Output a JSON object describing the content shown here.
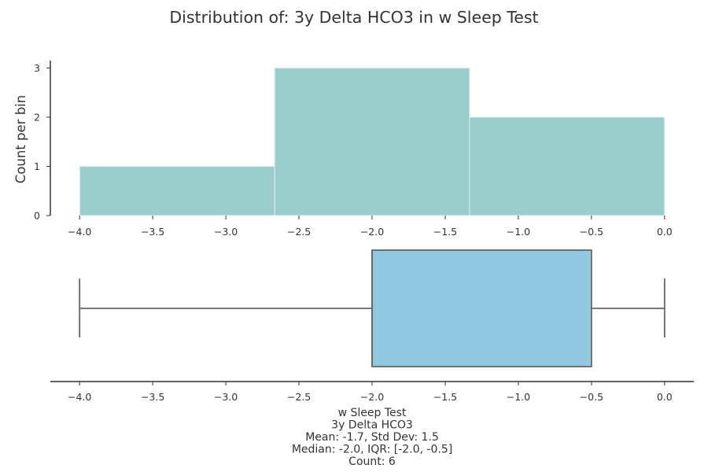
{
  "chart_data": {
    "type": "histogram+boxplot",
    "title": "Distribution of: 3y Delta HCO3 in w Sleep Test",
    "histogram": {
      "ylabel": "Count per bin",
      "xlim": [
        -4.2,
        0.2
      ],
      "ylim": [
        0,
        3.15
      ],
      "xticks": [
        -4.0,
        -3.5,
        -3.0,
        -2.5,
        -2.0,
        -1.5,
        -1.0,
        -0.5,
        0.0
      ],
      "xtick_labels": [
        "−4.0",
        "−3.5",
        "−3.0",
        "−2.5",
        "−2.0",
        "−1.5",
        "−1.0",
        "−0.5",
        "0.0"
      ],
      "yticks": [
        0,
        1,
        2,
        3
      ],
      "ytick_labels": [
        "0",
        "1",
        "2",
        "3"
      ],
      "bins": [
        {
          "start": -4.0,
          "end": -2.6667,
          "count": 1
        },
        {
          "start": -2.6667,
          "end": -1.3333,
          "count": 3
        },
        {
          "start": -1.3333,
          "end": 0.0,
          "count": 2
        }
      ],
      "color": "#9ccdcd",
      "edge_color": "#e4f1f1"
    },
    "boxplot": {
      "min": -4.0,
      "q1": -2.0,
      "median": -2.0,
      "q3": -0.5,
      "max": 0.0,
      "xticks": [
        -4.0,
        -3.5,
        -3.0,
        -2.5,
        -2.0,
        -1.5,
        -1.0,
        -0.5,
        0.0
      ],
      "xtick_labels": [
        "−4.0",
        "−3.5",
        "−3.0",
        "−2.5",
        "−2.0",
        "−1.5",
        "−1.0",
        "−0.5",
        "0.0"
      ],
      "box_color": "#92c8e0",
      "line_color": "#666666"
    },
    "summary_lines": [
      "w Sleep Test",
      "3y Delta HCO3",
      "Mean: -1.7, Std Dev: 1.5",
      "Median: -2.0, IQR: [-2.0, -0.5]",
      "Count: 6"
    ]
  }
}
